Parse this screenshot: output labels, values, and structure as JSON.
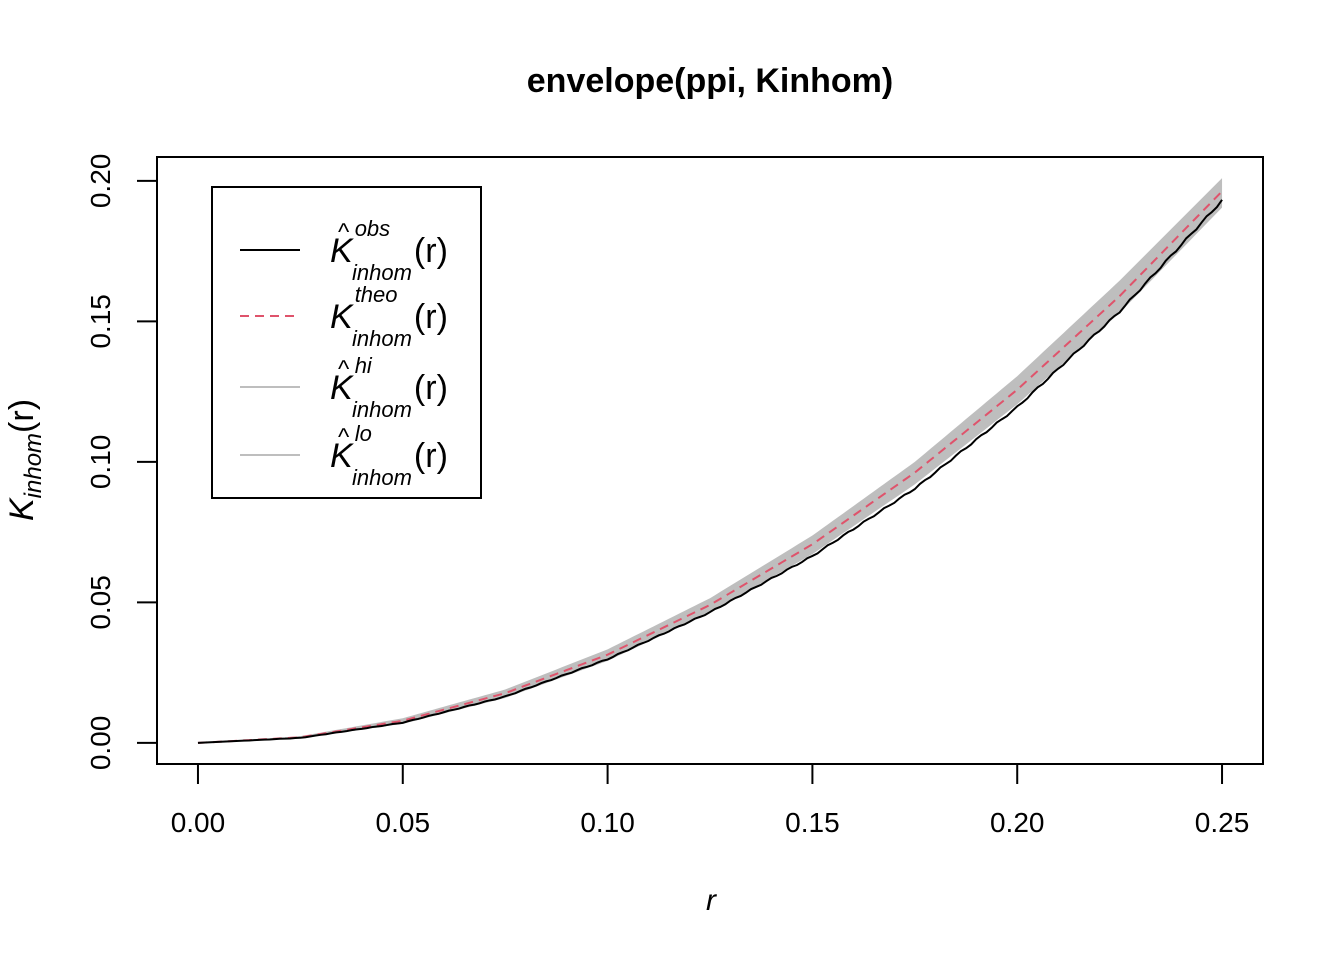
{
  "chart_data": {
    "type": "line",
    "title": "envelope(ppi, Kinhom)",
    "xlabel": "r",
    "ylabel": {
      "main": "K",
      "sub": "inhom",
      "paren": "(r)"
    },
    "xlim": [
      -0.01,
      0.26
    ],
    "ylim": [
      -0.0075,
      0.2085
    ],
    "xticks": [
      0.0,
      0.05,
      0.1,
      0.15,
      0.2,
      0.25
    ],
    "xtick_labels": [
      "0.00",
      "0.05",
      "0.10",
      "0.15",
      "0.20",
      "0.25"
    ],
    "yticks": [
      0.0,
      0.05,
      0.1,
      0.15,
      0.2
    ],
    "ytick_labels": [
      "0.00",
      "0.05",
      "0.10",
      "0.15",
      "0.20"
    ],
    "grid": false,
    "legend_position": "top-left",
    "colors": {
      "obs": "#000000",
      "theo": "#DF536B",
      "envelope": "#BEBEBE"
    },
    "x": [
      0.0,
      0.025,
      0.05,
      0.075,
      0.1,
      0.125,
      0.15,
      0.175,
      0.2,
      0.225,
      0.25
    ],
    "series": [
      {
        "key": "obs",
        "label_main": "K",
        "label_sup": "obs",
        "label_sub": "inhom",
        "label_paren": "(r)",
        "hat": true,
        "style": "solid",
        "values": [
          0.0,
          0.0018,
          0.0072,
          0.0165,
          0.0298,
          0.0465,
          0.0665,
          0.0905,
          0.1195,
          0.1535,
          0.193
        ]
      },
      {
        "key": "theo",
        "label_main": "K",
        "label_sup": "theo",
        "label_sub": "inhom",
        "label_paren": "(r)",
        "hat": false,
        "style": "dashed",
        "values": [
          0.0,
          0.002,
          0.0079,
          0.0177,
          0.0314,
          0.0491,
          0.0707,
          0.0962,
          0.1257,
          0.159,
          0.1963
        ]
      },
      {
        "key": "hi",
        "label_main": "K",
        "label_sup": "hi",
        "label_sub": "inhom",
        "label_paren": "(r)",
        "hat": true,
        "style": "solid",
        "values": [
          0.0,
          0.0024,
          0.0088,
          0.019,
          0.0333,
          0.0515,
          0.0738,
          0.1,
          0.1305,
          0.1645,
          0.201
        ]
      },
      {
        "key": "lo",
        "label_main": "K",
        "label_sup": "lo",
        "label_sub": "inhom",
        "label_paren": "(r)",
        "hat": true,
        "style": "solid",
        "values": [
          0.0,
          0.0016,
          0.0068,
          0.016,
          0.0292,
          0.0463,
          0.0672,
          0.092,
          0.1205,
          0.153,
          0.1905
        ]
      }
    ]
  }
}
